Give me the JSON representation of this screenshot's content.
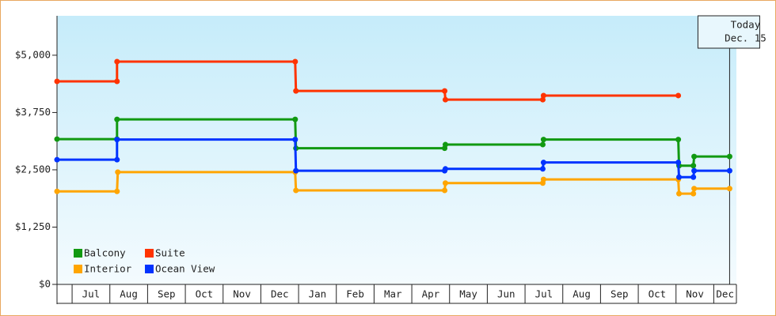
{
  "chart_data": {
    "type": "line",
    "step": true,
    "categories": [
      "Jul",
      "Aug",
      "Sep",
      "Oct",
      "Nov",
      "Dec",
      "Jan",
      "Feb",
      "Mar",
      "Apr",
      "May",
      "Jun",
      "Jul",
      "Aug",
      "Sep",
      "Oct",
      "Nov",
      "Dec"
    ],
    "xlim": [
      -0.4,
      17.6
    ],
    "ylim": [
      0,
      5860
    ],
    "yticks": [
      {
        "value": 0,
        "label": "$0"
      },
      {
        "value": 1250,
        "label": "$1,250"
      },
      {
        "value": 2500,
        "label": "$2,500"
      },
      {
        "value": 3750,
        "label": "$3,750"
      },
      {
        "value": 5000,
        "label": "$5,000"
      }
    ],
    "grid": false,
    "legend": "lower left",
    "series": [
      {
        "name": "Balcony",
        "color": "#119911",
        "x": [
          -0.4,
          1.19,
          1.19,
          5.91,
          5.93,
          9.87,
          9.89,
          12.47,
          12.49,
          16.06,
          16.08,
          16.46,
          16.48,
          17.42
        ],
        "values": [
          3170,
          3170,
          3600,
          3600,
          2970,
          2970,
          3050,
          3050,
          3160,
          3160,
          2590,
          2590,
          2790,
          2790
        ]
      },
      {
        "name": "Suite",
        "color": "#ff3300",
        "x": [
          -0.4,
          1.19,
          1.19,
          5.91,
          5.93,
          9.87,
          9.89,
          12.47,
          12.49,
          16.06
        ],
        "values": [
          4430,
          4430,
          4860,
          4860,
          4220,
          4220,
          4030,
          4030,
          4120,
          4120
        ]
      },
      {
        "name": "Interior",
        "color": "#ffa500",
        "x": [
          -0.4,
          1.19,
          1.21,
          5.91,
          5.93,
          9.87,
          9.89,
          12.47,
          12.49,
          16.06,
          16.08,
          16.46,
          16.48,
          17.42
        ],
        "values": [
          2030,
          2030,
          2450,
          2450,
          2050,
          2050,
          2210,
          2210,
          2290,
          2290,
          1980,
          1980,
          2090,
          2090
        ]
      },
      {
        "name": "Ocean View",
        "color": "#0033ff",
        "x": [
          -0.4,
          1.19,
          1.19,
          5.91,
          5.93,
          9.87,
          9.89,
          12.47,
          12.49,
          16.06,
          16.08,
          16.46,
          16.48,
          17.42
        ],
        "values": [
          2720,
          2720,
          3160,
          3160,
          2480,
          2480,
          2520,
          2520,
          2660,
          2660,
          2340,
          2340,
          2480,
          2480
        ]
      }
    ],
    "annotation": {
      "lines": [
        "Today",
        "Dec. 15"
      ],
      "x": 17.42
    }
  }
}
